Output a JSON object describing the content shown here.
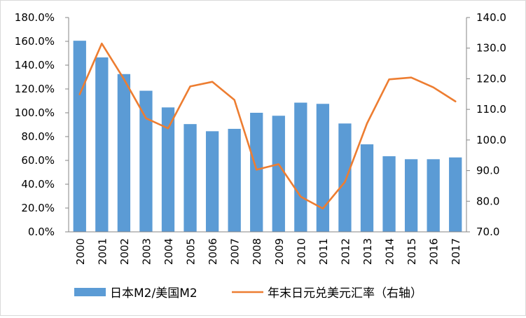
{
  "chart_data": {
    "type": "bar",
    "title": "",
    "xlabel": "",
    "ylabel": "",
    "categories": [
      "2000",
      "2001",
      "2002",
      "2003",
      "2004",
      "2005",
      "2006",
      "2007",
      "2008",
      "2009",
      "2010",
      "2011",
      "2012",
      "2013",
      "2014",
      "2015",
      "2016",
      "2017"
    ],
    "series": [
      {
        "name": "日本M2/美国M2",
        "type": "bar",
        "axis": "left",
        "color": "#5b9bd5",
        "values": [
          160.5,
          146.5,
          132.5,
          118.5,
          104.5,
          90.5,
          84.5,
          86.5,
          100.0,
          97.5,
          108.5,
          107.5,
          91.0,
          73.5,
          63.5,
          61.0,
          61.0,
          62.5
        ]
      },
      {
        "name": "年末日元兑美元汇率（右轴）",
        "type": "line",
        "axis": "right",
        "color": "#ed7d31",
        "values": [
          114.9,
          131.5,
          119.9,
          107.1,
          103.8,
          117.5,
          119.0,
          113.1,
          90.3,
          92.1,
          81.5,
          77.6,
          86.3,
          105.4,
          119.8,
          120.4,
          117.2,
          112.6
        ]
      }
    ],
    "y_left": {
      "min": 0,
      "max": 180,
      "step": 20,
      "unit": "%",
      "tick_labels": [
        "0.0%",
        "20.0%",
        "40.0%",
        "60.0%",
        "80.0%",
        "100.0%",
        "120.0%",
        "140.0%",
        "160.0%",
        "180.0%"
      ]
    },
    "y_right": {
      "min": 70,
      "max": 140,
      "step": 10,
      "tick_labels": [
        "70.0",
        "80.0",
        "90.0",
        "100.0",
        "110.0",
        "120.0",
        "130.0",
        "140.0"
      ]
    },
    "grid": false,
    "legend_position": "bottom"
  }
}
